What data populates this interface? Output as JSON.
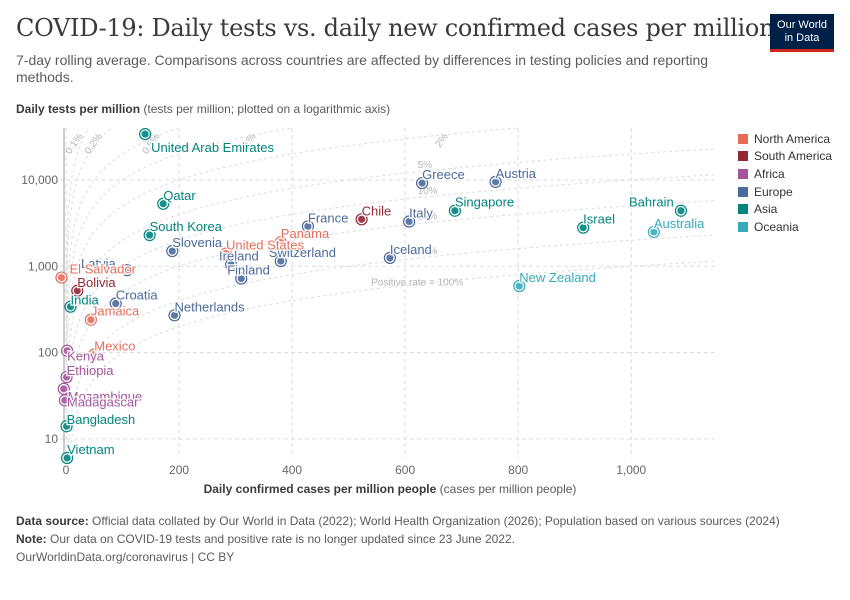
{
  "header": {
    "title": "COVID-19: Daily tests vs. daily new confirmed cases per million",
    "subtitle": "7-day rolling average. Comparisons across countries are affected by differences in testing policies and reporting methods.",
    "logo_line1": "Our World",
    "logo_line2": "in Data"
  },
  "axes": {
    "y_title_bold": "Daily tests per million",
    "y_title_rest": "(tests per million; plotted on a logarithmic axis)",
    "x_title_bold": "Daily confirmed cases per million people",
    "x_title_rest": "(cases per million people)"
  },
  "footer": {
    "source_label": "Data source:",
    "source_text": "Official data collated by Our World in Data (2022); World Health Organization (2026); Population based on various sources (2024)",
    "note_label": "Note:",
    "note_text": "Our data on COVID-19 tests and positive rate is no longer updated since 23 June 2022.",
    "link": "OurWorldinData.org/coronavirus | CC BY"
  },
  "chart_data": {
    "type": "scatter",
    "title": "COVID-19: Daily tests vs. daily new confirmed cases per million",
    "xlabel": "Daily confirmed cases per million people",
    "ylabel": "Daily tests per million",
    "xlim": [
      0,
      1150
    ],
    "ylim": [
      6,
      40000
    ],
    "y_scale": "log",
    "x_ticks": [
      0,
      200,
      400,
      600,
      800,
      1000
    ],
    "x_tick_labels": [
      "0",
      "200",
      "400",
      "600",
      "800",
      "1,000"
    ],
    "y_ticks": [
      10,
      100,
      1000,
      10000
    ],
    "y_tick_labels": [
      "10",
      "100",
      "1,000",
      "10,000"
    ],
    "legend_position": "right",
    "positive_rate_lines": [
      {
        "label": "0.1%",
        "rate": 0.001
      },
      {
        "label": "0.2%",
        "rate": 0.002
      },
      {
        "label": "0.5%",
        "rate": 0.005
      },
      {
        "label": "1%",
        "rate": 0.01
      },
      {
        "label": "2%",
        "rate": 0.02
      },
      {
        "label": "5%",
        "rate": 0.05
      },
      {
        "label": "10%",
        "rate": 0.1
      },
      {
        "label": "20%",
        "rate": 0.2
      },
      {
        "label": "50%",
        "rate": 0.5
      },
      {
        "label": "Positive rate = 100%",
        "rate": 1.0
      }
    ],
    "legend": [
      {
        "name": "North America",
        "color": "#e56e5a"
      },
      {
        "name": "South America",
        "color": "#932834"
      },
      {
        "name": "Africa",
        "color": "#a2559c"
      },
      {
        "name": "Europe",
        "color": "#4c6a9c"
      },
      {
        "name": "Asia",
        "color": "#00847e"
      },
      {
        "name": "Oceania",
        "color": "#38aaba"
      }
    ],
    "points": [
      {
        "name": "United Arab Emirates",
        "region": "Asia",
        "x": 140,
        "y": 34000,
        "label_dx": 6,
        "label_dy": 18
      },
      {
        "name": "Qatar",
        "region": "Asia",
        "x": 172,
        "y": 5300,
        "label_dx": 0,
        "label_dy": -4
      },
      {
        "name": "South Korea",
        "region": "Asia",
        "x": 148,
        "y": 2300,
        "label_dx": 0,
        "label_dy": -4
      },
      {
        "name": "Singapore",
        "region": "Asia",
        "x": 688,
        "y": 4400,
        "label_dx": 0,
        "label_dy": -4
      },
      {
        "name": "Israel",
        "region": "Asia",
        "x": 915,
        "y": 2800,
        "label_dx": 0,
        "label_dy": -4
      },
      {
        "name": "Bahrain",
        "region": "Asia",
        "x": 1088,
        "y": 4400,
        "label_dx": -52,
        "label_dy": -4
      },
      {
        "name": "India",
        "region": "Asia",
        "x": 8,
        "y": 340,
        "label_dx": 0,
        "label_dy": -2
      },
      {
        "name": "Bangladesh",
        "region": "Asia",
        "x": 1,
        "y": 14,
        "label_dx": 0,
        "label_dy": -2
      },
      {
        "name": "Vietnam",
        "region": "Asia",
        "x": 2,
        "y": 6,
        "label_dx": 0,
        "label_dy": -4
      },
      {
        "name": "Greece",
        "region": "Europe",
        "x": 630,
        "y": 9200,
        "label_dx": 0,
        "label_dy": -4
      },
      {
        "name": "Austria",
        "region": "Europe",
        "x": 760,
        "y": 9500,
        "label_dx": 0,
        "label_dy": -4
      },
      {
        "name": "France",
        "region": "Europe",
        "x": 428,
        "y": 2900,
        "label_dx": 0,
        "label_dy": -4
      },
      {
        "name": "Italy",
        "region": "Europe",
        "x": 607,
        "y": 3300,
        "label_dx": 0,
        "label_dy": -4
      },
      {
        "name": "Slovenia",
        "region": "Europe",
        "x": 188,
        "y": 1500,
        "label_dx": 0,
        "label_dy": -4
      },
      {
        "name": "Latvia",
        "region": "Europe",
        "x": 108,
        "y": 900,
        "label_dx": -46,
        "label_dy": -2
      },
      {
        "name": "Ireland",
        "region": "Europe",
        "x": 292,
        "y": 1050,
        "label_dx": -12,
        "label_dy": -4
      },
      {
        "name": "Switzerland",
        "region": "Europe",
        "x": 380,
        "y": 1150,
        "label_dx": -12,
        "label_dy": -4
      },
      {
        "name": "Finland",
        "region": "Europe",
        "x": 310,
        "y": 720,
        "label_dx": -14,
        "label_dy": -4
      },
      {
        "name": "Iceland",
        "region": "Europe",
        "x": 573,
        "y": 1250,
        "label_dx": 0,
        "label_dy": -4
      },
      {
        "name": "Croatia",
        "region": "Europe",
        "x": 88,
        "y": 370,
        "label_dx": 0,
        "label_dy": -4
      },
      {
        "name": "Netherlands",
        "region": "Europe",
        "x": 192,
        "y": 270,
        "label_dx": 0,
        "label_dy": -4
      },
      {
        "name": "Australia",
        "region": "Oceania",
        "x": 1040,
        "y": 2500,
        "label_dx": 0,
        "label_dy": -4
      },
      {
        "name": "New Zealand",
        "region": "Oceania",
        "x": 802,
        "y": 590,
        "label_dx": 0,
        "label_dy": -4
      },
      {
        "name": "Panama",
        "region": "North America",
        "x": 380,
        "y": 1900,
        "label_dx": 0,
        "label_dy": -4
      },
      {
        "name": "United States",
        "region": "North America",
        "x": 283,
        "y": 1400,
        "label_dx": 0,
        "label_dy": -4
      },
      {
        "name": "El Salvador",
        "region": "North America",
        "x": -8,
        "y": 740,
        "label_dx": 8,
        "label_dy": -4
      },
      {
        "name": "Jamaica",
        "region": "North America",
        "x": 44,
        "y": 240,
        "label_dx": 0,
        "label_dy": -4
      },
      {
        "name": "Mexico",
        "region": "North America",
        "x": 50,
        "y": 95,
        "label_dx": 0,
        "label_dy": -4
      },
      {
        "name": "Chile",
        "region": "South America",
        "x": 523,
        "y": 3500,
        "label_dx": 0,
        "label_dy": -4
      },
      {
        "name": "Bolivia",
        "region": "South America",
        "x": 20,
        "y": 520,
        "label_dx": 0,
        "label_dy": -4
      },
      {
        "name": "Kenya",
        "region": "Africa",
        "x": 2,
        "y": 105,
        "label_dx": 0,
        "label_dy": 10
      },
      {
        "name": "Ethiopia",
        "region": "Africa",
        "x": 1,
        "y": 52,
        "label_dx": 0,
        "label_dy": -2
      },
      {
        "name": "Mozambique",
        "region": "Africa",
        "x": -4,
        "y": 38,
        "label_dx": 4,
        "label_dy": 12
      },
      {
        "name": "Madagascar",
        "region": "Africa",
        "x": -2,
        "y": 28,
        "label_dx": 2,
        "label_dy": 6
      }
    ]
  }
}
